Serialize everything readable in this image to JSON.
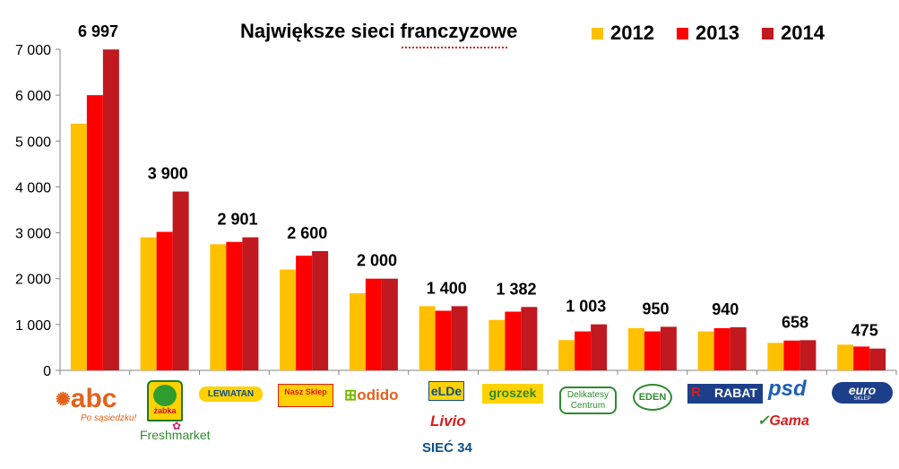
{
  "title": "Największe sieci franczyzowe",
  "colors": {
    "s2012": "#FFC000",
    "s2013": "#FF0000",
    "s2014": "#C0191F",
    "axis": "#868686",
    "tick": "#000000"
  },
  "legend": [
    "2012",
    "2013",
    "2014"
  ],
  "chart_data": {
    "type": "bar",
    "title": "Największe sieci franczyzowe",
    "xlabel": "",
    "ylabel": "",
    "ylim": [
      0,
      7000
    ],
    "yticks": [
      "0",
      "1 000",
      "2 000",
      "3 000",
      "4 000",
      "5 000",
      "6 000",
      "7 000"
    ],
    "categories": [
      "abc",
      "Żabka / Freshmarket",
      "Lewiatan",
      "Nasz Sklep",
      "odido",
      "eLDe / Livio / Sieć 34",
      "groszek",
      "Delikatesy Centrum",
      "Eden",
      "Rabat",
      "psd / Gama",
      "euro sklep"
    ],
    "series": [
      {
        "name": "2012",
        "values": [
          5380,
          2900,
          2750,
          2200,
          1680,
          1400,
          1100,
          660,
          920,
          850,
          600,
          560
        ]
      },
      {
        "name": "2013",
        "values": [
          6000,
          3020,
          2800,
          2500,
          2000,
          1300,
          1280,
          850,
          850,
          920,
          650,
          520
        ]
      },
      {
        "name": "2014",
        "values": [
          6997,
          3900,
          2901,
          2600,
          2000,
          1400,
          1382,
          1003,
          950,
          940,
          658,
          475
        ]
      }
    ],
    "data_labels_2014": [
      "6 997",
      "3 900",
      "2 901",
      "2 600",
      "2 000",
      "1 400",
      "1 382",
      "1 003",
      "950",
      "940",
      "658",
      "475"
    ],
    "grid": false,
    "legend_position": "top-right"
  },
  "logos": [
    {
      "text": "abc",
      "sub": "Po sąsiedzku!"
    },
    {
      "text": "żabka",
      "sub": ""
    },
    {
      "text": "Freshmarket",
      "sub": ""
    },
    {
      "text": "LEWIATAN",
      "sub": ""
    },
    {
      "text": "Nasz Sklep",
      "sub": ""
    },
    {
      "text": "odido",
      "sub": ""
    },
    {
      "text": "eLDe",
      "sub": ""
    },
    {
      "text": "Livio",
      "sub": ""
    },
    {
      "text": "SIEĆ 34",
      "sub": ""
    },
    {
      "text": "groszek",
      "sub": ""
    },
    {
      "text": "Delikatesy Centrum",
      "sub": ""
    },
    {
      "text": "EDEN",
      "sub": ""
    },
    {
      "text": "RABAT",
      "sub": ""
    },
    {
      "text": "psd",
      "sub": ""
    },
    {
      "text": "Gama",
      "sub": ""
    },
    {
      "text": "euro",
      "sub": "SKLEP"
    }
  ]
}
